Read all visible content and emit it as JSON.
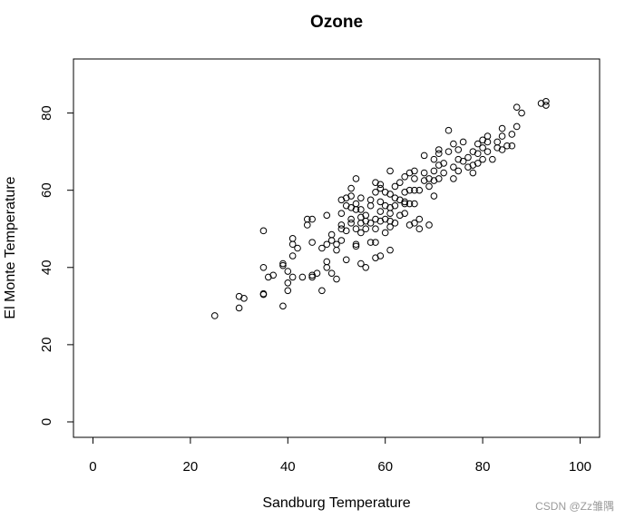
{
  "chart_data": {
    "type": "scatter",
    "title": "Ozone",
    "xlabel": "Sandburg Temperature",
    "ylabel": "El Monte Temperature",
    "xlim": [
      -4,
      104
    ],
    "ylim": [
      -4,
      94
    ],
    "xticks": [
      "0",
      "20",
      "40",
      "60",
      "80",
      "100"
    ],
    "yticks": [
      "0",
      "20",
      "40",
      "60",
      "80"
    ],
    "marker": "open-circle",
    "grid": false,
    "series": [
      {
        "points": [
          [
            25,
            27.5
          ],
          [
            30,
            29.5
          ],
          [
            30,
            32.5
          ],
          [
            31,
            32
          ],
          [
            35,
            33
          ],
          [
            35,
            33.2
          ],
          [
            35,
            40
          ],
          [
            35,
            49.5
          ],
          [
            36,
            37.5
          ],
          [
            37,
            38
          ],
          [
            39,
            30
          ],
          [
            39,
            40.5
          ],
          [
            39,
            41
          ],
          [
            40,
            34
          ],
          [
            40,
            36
          ],
          [
            40,
            39
          ],
          [
            41,
            37.5
          ],
          [
            41,
            43
          ],
          [
            41,
            46
          ],
          [
            41,
            47.5
          ],
          [
            42,
            45
          ],
          [
            43,
            37.5
          ],
          [
            44,
            51
          ],
          [
            44,
            52.5
          ],
          [
            45,
            37.5
          ],
          [
            45,
            38
          ],
          [
            45,
            46.5
          ],
          [
            45,
            52.5
          ],
          [
            46,
            38.5
          ],
          [
            47,
            34
          ],
          [
            47,
            45
          ],
          [
            48,
            40
          ],
          [
            48,
            41.5
          ],
          [
            48,
            46
          ],
          [
            48,
            53.5
          ],
          [
            49,
            38.5
          ],
          [
            49,
            47
          ],
          [
            49,
            48.5
          ],
          [
            50,
            37
          ],
          [
            50,
            44.5
          ],
          [
            50,
            46
          ],
          [
            51,
            47
          ],
          [
            51,
            50
          ],
          [
            51,
            51
          ],
          [
            51,
            54
          ],
          [
            51,
            57.5
          ],
          [
            52,
            42
          ],
          [
            52,
            49.5
          ],
          [
            52,
            56
          ],
          [
            52,
            58
          ],
          [
            53,
            51.5
          ],
          [
            53,
            52.5
          ],
          [
            53,
            55.5
          ],
          [
            53,
            58.5
          ],
          [
            53,
            60.5
          ],
          [
            54,
            45.5
          ],
          [
            54,
            46
          ],
          [
            54,
            50
          ],
          [
            54,
            55
          ],
          [
            54,
            56.5
          ],
          [
            54,
            63
          ],
          [
            55,
            41
          ],
          [
            55,
            49
          ],
          [
            55,
            51.5
          ],
          [
            55,
            53
          ],
          [
            55,
            55
          ],
          [
            55,
            58
          ],
          [
            56,
            40
          ],
          [
            56,
            50
          ],
          [
            56,
            52
          ],
          [
            56,
            53.5
          ],
          [
            57,
            46.5
          ],
          [
            57,
            51.5
          ],
          [
            57,
            56
          ],
          [
            57,
            57.5
          ],
          [
            58,
            42.5
          ],
          [
            58,
            46.5
          ],
          [
            58,
            50
          ],
          [
            58,
            52.5
          ],
          [
            58,
            59.5
          ],
          [
            58,
            62
          ],
          [
            59,
            43
          ],
          [
            59,
            52
          ],
          [
            59,
            54.5
          ],
          [
            59,
            57
          ],
          [
            59,
            60.5
          ],
          [
            59,
            61.5
          ],
          [
            60,
            49
          ],
          [
            60,
            52.5
          ],
          [
            60,
            56
          ],
          [
            60,
            59.5
          ],
          [
            61,
            44.5
          ],
          [
            61,
            50.5
          ],
          [
            61,
            52
          ],
          [
            61,
            54
          ],
          [
            61,
            55.5
          ],
          [
            61,
            59
          ],
          [
            61,
            65
          ],
          [
            62,
            51.5
          ],
          [
            62,
            56
          ],
          [
            62,
            58
          ],
          [
            62,
            61
          ],
          [
            63,
            53.5
          ],
          [
            63,
            57.5
          ],
          [
            63,
            62
          ],
          [
            64,
            54
          ],
          [
            64,
            56.5
          ],
          [
            64,
            57
          ],
          [
            64,
            59.5
          ],
          [
            64,
            63.5
          ],
          [
            65,
            51
          ],
          [
            65,
            56.5
          ],
          [
            65,
            60
          ],
          [
            65,
            64.5
          ],
          [
            66,
            51.5
          ],
          [
            66,
            56.5
          ],
          [
            66,
            60
          ],
          [
            66,
            63
          ],
          [
            66,
            65
          ],
          [
            67,
            50
          ],
          [
            67,
            52.5
          ],
          [
            67,
            60
          ],
          [
            68,
            62.5
          ],
          [
            68,
            64.5
          ],
          [
            68,
            69
          ],
          [
            69,
            51
          ],
          [
            69,
            61
          ],
          [
            69,
            63
          ],
          [
            70,
            58.5
          ],
          [
            70,
            62.5
          ],
          [
            70,
            65
          ],
          [
            70,
            68
          ],
          [
            71,
            63
          ],
          [
            71,
            66.5
          ],
          [
            71,
            69.5
          ],
          [
            71,
            70.5
          ],
          [
            72,
            64.5
          ],
          [
            72,
            67
          ],
          [
            73,
            70
          ],
          [
            73,
            75.5
          ],
          [
            74,
            63
          ],
          [
            74,
            66
          ],
          [
            74,
            72
          ],
          [
            75,
            65
          ],
          [
            75,
            68
          ],
          [
            75,
            70.5
          ],
          [
            76,
            67.5
          ],
          [
            76,
            72.5
          ],
          [
            77,
            66
          ],
          [
            77,
            68.5
          ],
          [
            78,
            64.5
          ],
          [
            78,
            66.5
          ],
          [
            78,
            70
          ],
          [
            79,
            67
          ],
          [
            79,
            69.5
          ],
          [
            79,
            72
          ],
          [
            80,
            68
          ],
          [
            80,
            71
          ],
          [
            80,
            73
          ],
          [
            81,
            70
          ],
          [
            81,
            72.5
          ],
          [
            81,
            74
          ],
          [
            82,
            68
          ],
          [
            83,
            71
          ],
          [
            83,
            72.5
          ],
          [
            84,
            70.5
          ],
          [
            84,
            74
          ],
          [
            84,
            76
          ],
          [
            85,
            71.5
          ],
          [
            86,
            71.5
          ],
          [
            86,
            74.5
          ],
          [
            87,
            76.5
          ],
          [
            87,
            81.5
          ],
          [
            88,
            80
          ],
          [
            92,
            82.5
          ],
          [
            93,
            82
          ],
          [
            93,
            83
          ]
        ]
      }
    ]
  },
  "watermark": "CSDN @Zz雏隅"
}
